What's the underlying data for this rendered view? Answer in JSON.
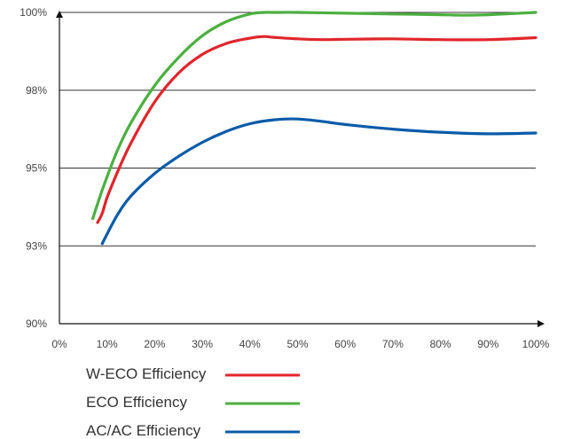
{
  "chart_data": {
    "type": "line",
    "title": "",
    "xlabel": "",
    "ylabel": "",
    "x_tick_labels": [
      "0%",
      "10%",
      "20%",
      "30%",
      "40%",
      "50%",
      "60%",
      "70%",
      "80%",
      "90%",
      "100%"
    ],
    "y_tick_labels": [
      "90%",
      "93%",
      "95%",
      "98%",
      "100%"
    ],
    "xlim": [
      0,
      100
    ],
    "y_levels": 4,
    "grid": "horizontal",
    "legend_position": "bottom",
    "series": [
      {
        "name": "W-ECO Efficiency",
        "color": "#e0262b",
        "x": [
          8,
          9,
          10,
          12,
          15,
          20,
          25,
          30,
          35,
          40,
          43,
          45,
          50,
          55,
          60,
          70,
          80,
          90,
          100
        ],
        "y": [
          1.3,
          1.42,
          1.62,
          1.92,
          2.32,
          2.85,
          3.22,
          3.46,
          3.6,
          3.67,
          3.69,
          3.68,
          3.66,
          3.65,
          3.655,
          3.66,
          3.65,
          3.65,
          3.675
        ]
      },
      {
        "name": "ECO Efficiency",
        "color": "#4bb03f",
        "x": [
          7,
          9,
          12,
          15,
          20,
          25,
          30,
          35,
          40,
          43,
          45,
          50,
          60,
          70,
          80,
          85,
          90,
          100
        ],
        "y": [
          1.35,
          1.72,
          2.2,
          2.58,
          3.06,
          3.42,
          3.7,
          3.88,
          3.98,
          4.0,
          4.0,
          4.0,
          3.99,
          3.98,
          3.97,
          3.965,
          3.97,
          4.0
        ]
      },
      {
        "name": "AC/AC Efficiency",
        "color": "#0a5ba8",
        "x": [
          9,
          12,
          15,
          20,
          25,
          30,
          35,
          40,
          45,
          50,
          55,
          60,
          70,
          80,
          90,
          100
        ],
        "y": [
          1.03,
          1.38,
          1.64,
          1.93,
          2.15,
          2.33,
          2.47,
          2.57,
          2.62,
          2.63,
          2.6,
          2.56,
          2.5,
          2.46,
          2.44,
          2.45
        ]
      }
    ]
  }
}
